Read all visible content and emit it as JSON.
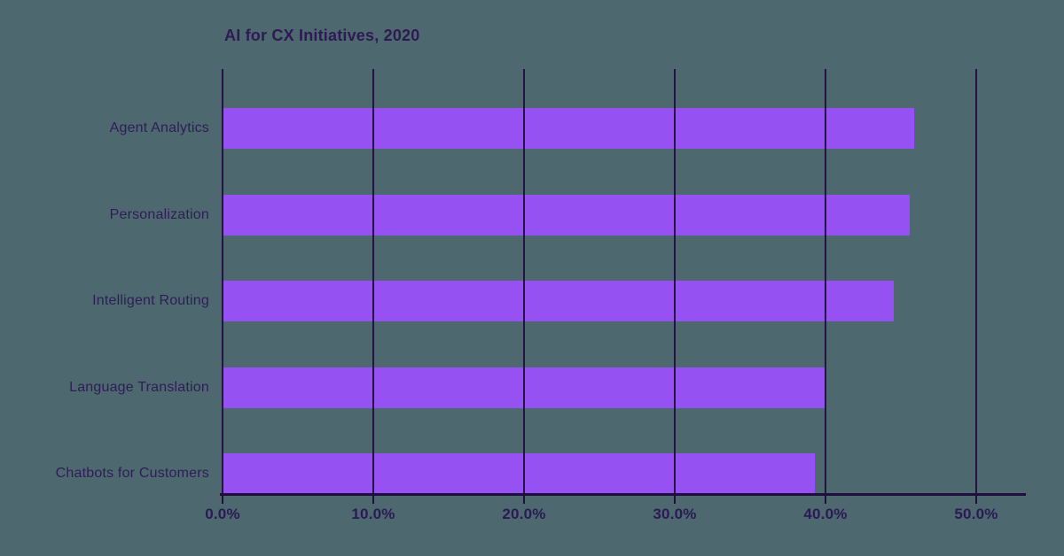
{
  "chart_data": {
    "type": "bar",
    "orientation": "horizontal",
    "title": "AI for CX Initiatives, 2020",
    "categories": [
      "Agent Analytics",
      "Personalization",
      "Intelligent Routing",
      "Language Translation",
      "Chatbots for Customers"
    ],
    "values": [
      45.9,
      45.6,
      44.5,
      40.0,
      39.3
    ],
    "unit": "percent",
    "x_tick_labels": [
      "0.0%",
      "10.0%",
      "20.0%",
      "30.0%",
      "40.0%",
      "50.0%"
    ],
    "x_tick_values": [
      0,
      10,
      20,
      30,
      40,
      50
    ],
    "xlim": [
      0,
      53.2
    ],
    "grid": "vertical-gridlines-over-bars",
    "legend": "none",
    "colors": {
      "background": "#4d686e",
      "bar": "#9551f1",
      "gridline": "#241345",
      "axis": "#1e0f3c",
      "title_text": "#2e1a55",
      "category_text": "#2f1d58",
      "tick_text": "#2c1957"
    }
  }
}
